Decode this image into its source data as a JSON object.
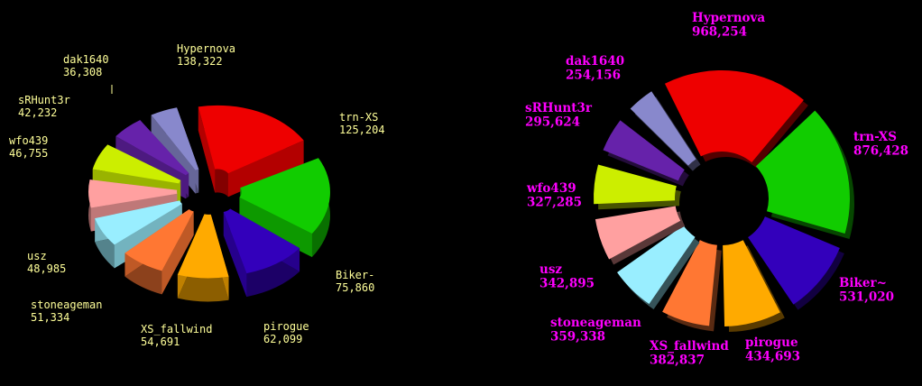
{
  "chart_data": [
    {
      "type": "pie",
      "style": "3d-exploded-radial",
      "label_color": "#ffff99",
      "slices": [
        {
          "name": "Hypernova",
          "value": "138,322",
          "color": "#ee0000"
        },
        {
          "name": "trn-XS",
          "value": "125,204",
          "color": "#11cc00"
        },
        {
          "name": "Biker-",
          "value": "75,860",
          "color": "#3300bb"
        },
        {
          "name": "pirogue",
          "value": "62,099",
          "color": "#ffaa00"
        },
        {
          "name": "XS_fallwind",
          "value": "54,691",
          "color": "#ff7733"
        },
        {
          "name": "stoneageman",
          "value": "51,334",
          "color": "#99eeff"
        },
        {
          "name": "usz",
          "value": "48,985",
          "color": "#ffa0a0"
        },
        {
          "name": "wfo439",
          "value": "46,755",
          "color": "#ccee00"
        },
        {
          "name": "sRHunt3r",
          "value": "42,232",
          "color": "#6622aa"
        },
        {
          "name": "dak1640",
          "value": "36,308",
          "color": "#8888cc"
        }
      ]
    },
    {
      "type": "pie",
      "style": "exploded-radial",
      "label_color": "#ff00ff",
      "slices": [
        {
          "name": "Hypernova",
          "value": "968,254",
          "color": "#ee0000"
        },
        {
          "name": "trn-XS",
          "value": "876,428",
          "color": "#11cc00"
        },
        {
          "name": "Biker~",
          "value": "531,020",
          "color": "#3300bb"
        },
        {
          "name": "pirogue",
          "value": "434,693",
          "color": "#ffaa00"
        },
        {
          "name": "XS_fallwind",
          "value": "382,837",
          "color": "#ff7733"
        },
        {
          "name": "stoneageman",
          "value": "359,338",
          "color": "#99eeff"
        },
        {
          "name": "usz",
          "value": "342,895",
          "color": "#ffa0a0"
        },
        {
          "name": "wfo439",
          "value": "327,285",
          "color": "#ccee00"
        },
        {
          "name": "sRHunt3r",
          "value": "295,624",
          "color": "#6622aa"
        },
        {
          "name": "dak1640",
          "value": "254,156",
          "color": "#8888cc"
        }
      ]
    }
  ]
}
